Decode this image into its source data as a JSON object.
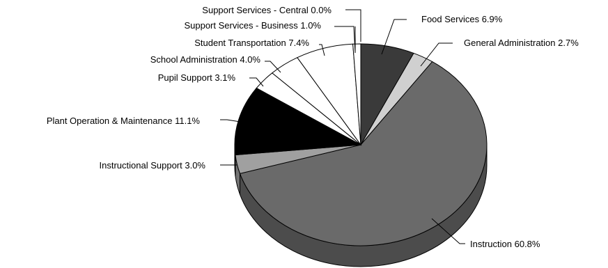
{
  "chart_data": {
    "type": "pie",
    "title": "",
    "style": "3d-tilted",
    "start": "12 o'clock",
    "direction": "clockwise",
    "labels_with_leader_lines": true,
    "slices": [
      {
        "label": "Food Services 6.9%",
        "value": 6.9,
        "color": "#3a3a3a"
      },
      {
        "label": "General Administration 2.7%",
        "value": 2.7,
        "color": "#d0d0d0"
      },
      {
        "label": "Instruction 60.8%",
        "value": 60.8,
        "color": "#6a6a6a"
      },
      {
        "label": "Instructional Support 3.0%",
        "value": 3.0,
        "color": "#a0a0a0"
      },
      {
        "label": "Plant Operation & Maintenance 11.1%",
        "value": 11.1,
        "color": "#000000"
      },
      {
        "label": "Pupil Support 3.1%",
        "value": 3.1,
        "color": "#ffffff"
      },
      {
        "label": "School Administration 4.0%",
        "value": 4.0,
        "color": "#ffffff"
      },
      {
        "label": "Student Transportation 7.4%",
        "value": 7.4,
        "color": "#ffffff"
      },
      {
        "label": "Support Services - Business 1.0%",
        "value": 1.0,
        "color": "#ffffff"
      },
      {
        "label": "Support Services - Central 0.0%",
        "value": 0.0,
        "color": "#ffffff"
      }
    ]
  }
}
